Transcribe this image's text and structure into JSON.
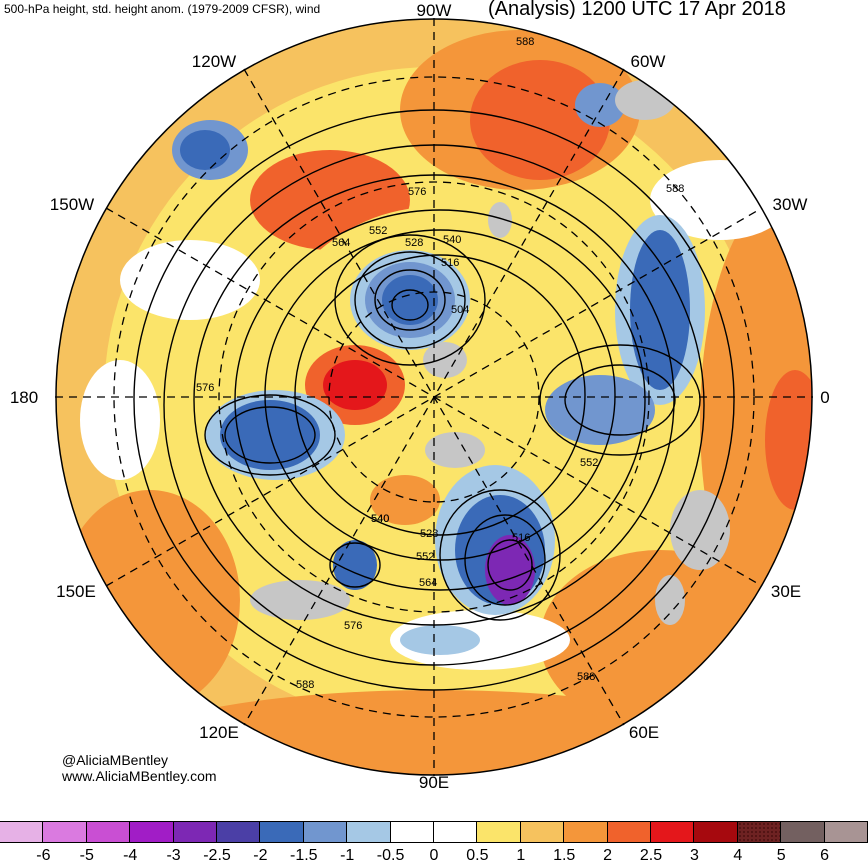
{
  "header": {
    "left_title": "500-hPa height, std. height anom. (1979-2009 CFSR), wind",
    "right_title": "(Analysis) 1200 UTC 17 Apr 2018"
  },
  "credits": {
    "handle": "@AliciaMBentley",
    "website": "www.AliciaMBentley.com"
  },
  "map": {
    "projection": "north-polar-stereographic",
    "longitude_labels": [
      "90W",
      "60W",
      "30W",
      "0",
      "30E",
      "60E",
      "90E",
      "120E",
      "150E",
      "180",
      "150W",
      "120W"
    ],
    "contour_labels": [
      "588",
      "588",
      "576",
      "564",
      "552",
      "540",
      "528",
      "516",
      "504",
      "540",
      "552",
      "576",
      "516",
      "528",
      "540",
      "552",
      "564",
      "576",
      "588",
      "588"
    ],
    "colors": {
      "warm_anomaly": "#f4963a",
      "strong_warm": "#e4171b",
      "cold_anomaly": "#6e93cc",
      "strong_cold": "#3a62b4",
      "extreme_cold": "#8b1ad0",
      "land_gray": "#c6c6c6"
    }
  },
  "colorbar": {
    "ticks": [
      "-6",
      "-5",
      "-4",
      "-3",
      "-2.5",
      "-2",
      "-1.5",
      "-1",
      "-0.5",
      "0",
      "0.5",
      "1",
      "1.5",
      "2",
      "2.5",
      "3",
      "4",
      "5",
      "6"
    ],
    "colors": [
      "#e6b1e6",
      "#da7ae0",
      "#c94fd3",
      "#a11dc6",
      "#7d28b4",
      "#4b3fa6",
      "#3a6ab8",
      "#7196cf",
      "#a5c8e5",
      "#ffffff",
      "#ffffff",
      "#fbe46a",
      "#f6c25e",
      "#f4963a",
      "#f0622c",
      "#e4171b",
      "#a6090e",
      "#6e2222",
      "#736060",
      "#a89494"
    ]
  }
}
